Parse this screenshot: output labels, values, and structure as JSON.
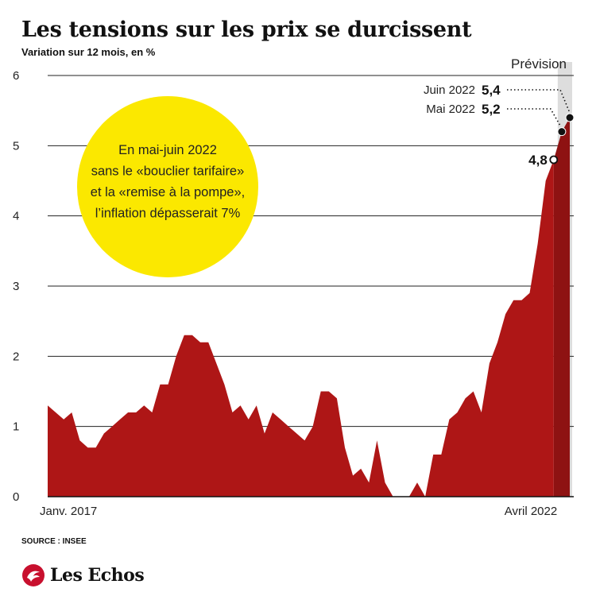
{
  "chart_data": {
    "type": "area",
    "title": "Les tensions sur les prix se durcissent",
    "subtitle": "Variation sur 12 mois, en %",
    "ylim": [
      0,
      6
    ],
    "y_ticks": [
      "0",
      "1",
      "2",
      "3",
      "4",
      "5",
      "6"
    ],
    "x_start": "Janv. 2017",
    "x_label_start": "Janv. 2017",
    "x_label_end": "Avril 2022",
    "forecast_label": "Prévision",
    "series": [
      {
        "values": [
          1.3,
          1.2,
          1.1,
          1.2,
          0.8,
          0.7,
          0.7,
          0.9,
          1.0,
          1.1,
          1.2,
          1.2,
          1.3,
          1.2,
          1.6,
          1.6,
          2.0,
          2.3,
          2.3,
          2.2,
          2.2,
          1.9,
          1.6,
          1.2,
          1.3,
          1.1,
          1.3,
          0.9,
          1.2,
          1.1,
          1.0,
          0.9,
          0.8,
          1.0,
          1.5,
          1.5,
          1.4,
          0.7,
          0.3,
          0.4,
          0.2,
          0.8,
          0.2,
          0.0,
          0.0,
          0.0,
          0.2,
          0.0,
          0.6,
          0.6,
          1.1,
          1.2,
          1.4,
          1.5,
          1.2,
          1.9,
          2.2,
          2.6,
          2.8,
          2.8,
          2.9,
          3.6,
          4.5,
          4.8,
          5.2,
          5.4
        ]
      }
    ],
    "forecast_count": 2,
    "annotations": [
      {
        "label": "Juin 2022",
        "value": "5,4"
      },
      {
        "label": "Mai 2022",
        "value": "5,2"
      },
      {
        "label": "",
        "value": "4,8"
      }
    ],
    "callout": [
      "En mai-juin 2022",
      "sans le «bouclier tarifaire»",
      "et la «remise à la pompe»,",
      "l’inflation dépasserait 7%"
    ],
    "colors": {
      "area": "#ae1616",
      "forecast_area": "#8e1212",
      "forecast_band": "#dddddd",
      "callout_circle": "#fbe800",
      "grid": "#222222"
    }
  },
  "source": "SOURCE : INSEE",
  "brand": {
    "name": "Les Echos",
    "icon": "echos-logo-icon"
  }
}
